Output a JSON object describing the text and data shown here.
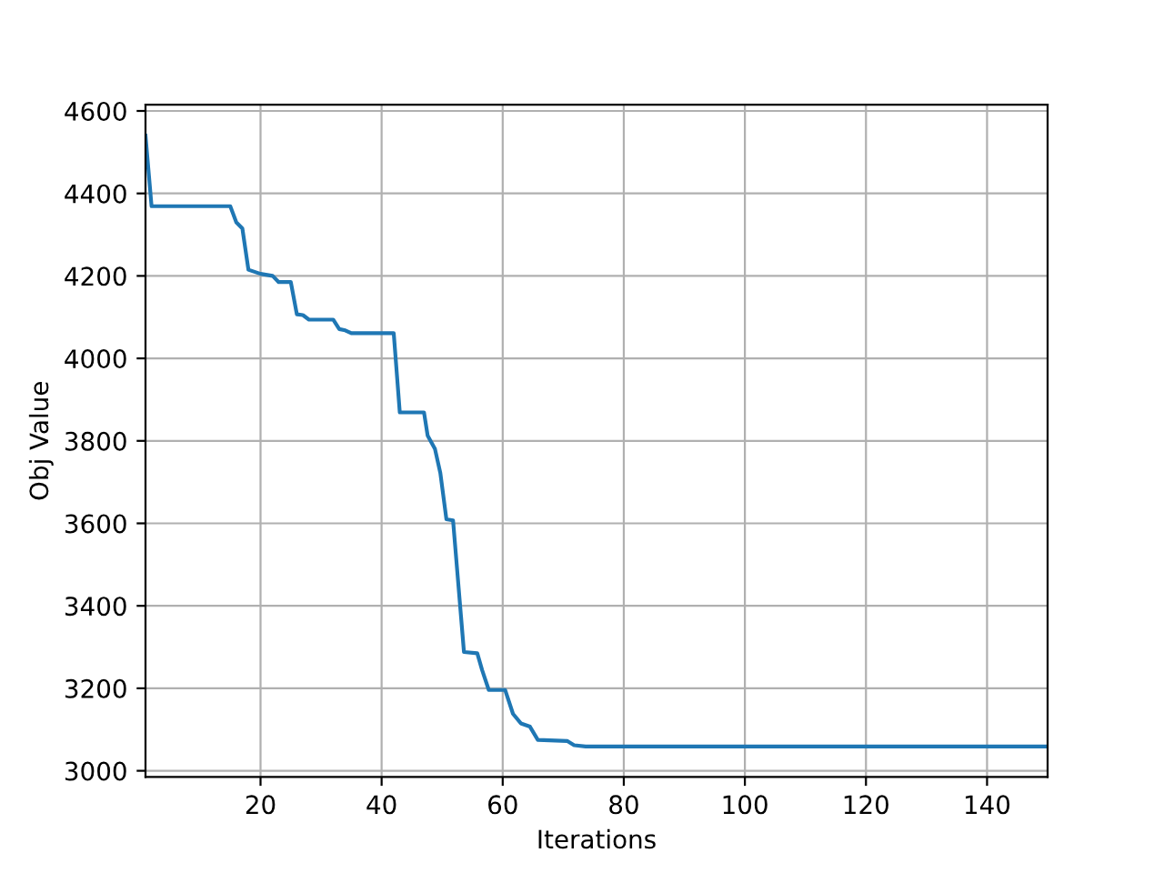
{
  "chart_data": {
    "type": "line",
    "xlabel": "Iterations",
    "ylabel": "Obj Value",
    "x": [
      1,
      2,
      15,
      16,
      17,
      18,
      19,
      20,
      22,
      23,
      25,
      26,
      27,
      28,
      32,
      33,
      34,
      35,
      42,
      43,
      47,
      47.6,
      48.8,
      49.7,
      50.7,
      51.8,
      53.6,
      55.8,
      56.6,
      57.7,
      60.4,
      61.7,
      63,
      64.5,
      65.8,
      70.7,
      71.8,
      73.7,
      150
    ],
    "series": [
      {
        "color": "#1f77b4",
        "values": [
          4540,
          4369,
          4369,
          4330,
          4315,
          4215,
          4210,
          4205,
          4200,
          4185,
          4185,
          4107,
          4105,
          4094,
          4094,
          4071,
          4068,
          4061,
          4061,
          3869,
          3869,
          3813,
          3781,
          3722,
          3610,
          3607,
          3288,
          3285,
          3244,
          3196,
          3196,
          3138,
          3115,
          3107,
          3075,
          3072,
          3062,
          3059,
          3059
        ]
      }
    ],
    "xlim": [
      1,
      150
    ],
    "xticks": [
      20,
      40,
      60,
      80,
      100,
      120,
      140
    ],
    "ylim": [
      2985,
      4615
    ],
    "yticks": [
      3000,
      3200,
      3400,
      3600,
      3800,
      4000,
      4200,
      4400,
      4600
    ],
    "grid": true,
    "marker": "none",
    "line_style": "solid"
  }
}
